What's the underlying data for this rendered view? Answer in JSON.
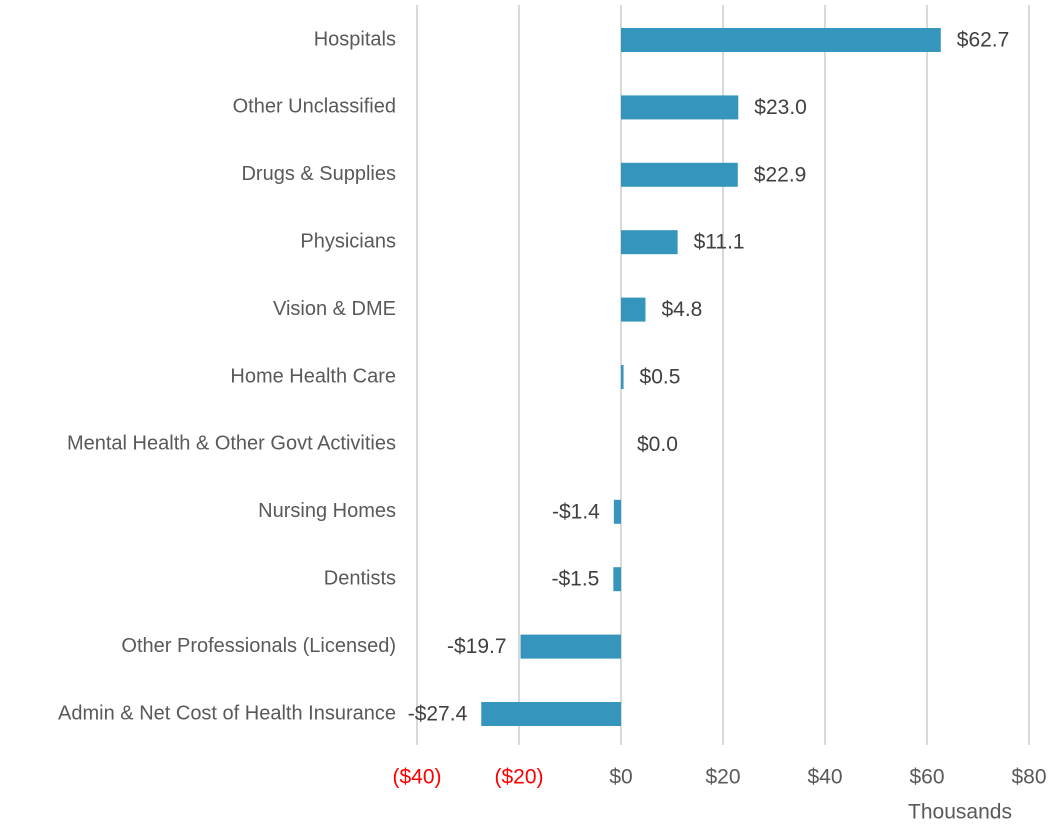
{
  "chart_data": {
    "type": "barh",
    "categories": [
      "Hospitals",
      "Other Unclassified",
      "Drugs & Supplies",
      "Physicians",
      "Vision & DME",
      "Home Health Care",
      "Mental Health & Other Govt Activities",
      "Nursing Homes",
      "Dentists",
      "Other Professionals (Licensed)",
      "Admin & Net Cost of Health Insurance"
    ],
    "values": [
      62.7,
      23.0,
      22.9,
      11.1,
      4.8,
      0.5,
      0.0,
      -1.4,
      -1.5,
      -19.7,
      -27.4
    ],
    "value_labels": [
      "$62.7",
      "$23.0",
      "$22.9",
      "$11.1",
      "$4.8",
      "$0.5",
      "$0.0",
      "-$1.4",
      "-$1.5",
      "-$19.7",
      "-$27.4"
    ],
    "color": "#3595bd",
    "xlim": [
      -40,
      80
    ],
    "xticks": [
      {
        "value": -40,
        "label": "($40)"
      },
      {
        "value": -20,
        "label": "($20)"
      },
      {
        "value": 0,
        "label": "$0"
      },
      {
        "value": 20,
        "label": "$20"
      },
      {
        "value": 40,
        "label": "$40"
      },
      {
        "value": 60,
        "label": "$60"
      },
      {
        "value": 80,
        "label": "$80"
      }
    ],
    "negative_tick_color": "#ff0000",
    "xlabel": "Thousands",
    "grid": true
  }
}
